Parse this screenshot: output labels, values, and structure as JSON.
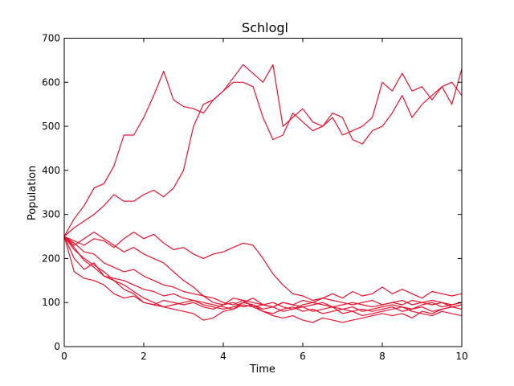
{
  "chart_data": {
    "type": "line",
    "title": "Schlogl",
    "xlabel": "Time",
    "ylabel": "Population",
    "xlim": [
      0,
      10
    ],
    "ylim": [
      0,
      700
    ],
    "xticks": [
      0,
      2,
      4,
      6,
      8,
      10
    ],
    "yticks": [
      0,
      100,
      200,
      300,
      400,
      500,
      600,
      700
    ],
    "grid": false,
    "legend": "none",
    "line_color": "#e8112d",
    "series": [
      {
        "x": [
          0,
          0.25,
          0.5,
          0.75,
          1.0,
          1.25,
          1.5,
          1.75,
          2.0,
          2.25,
          2.5,
          2.75,
          3.0,
          3.25,
          3.5,
          3.75,
          4.0,
          4.25,
          4.5,
          4.75,
          5.0,
          5.25,
          5.5,
          5.75,
          6.0,
          6.25,
          6.5,
          6.75,
          7.0,
          7.25,
          7.5,
          7.75,
          8.0,
          8.25,
          8.5,
          8.75,
          9.0,
          9.25,
          9.5,
          9.75,
          10.0
        ],
        "values": [
          250,
          290,
          320,
          360,
          370,
          410,
          480,
          480,
          520,
          570,
          625,
          560,
          545,
          540,
          530,
          560,
          580,
          610,
          640,
          620,
          600,
          640,
          500,
          520,
          540,
          510,
          500,
          530,
          520,
          470,
          460,
          490,
          500,
          530,
          570,
          520,
          550,
          570,
          590,
          550,
          630
        ]
      },
      {
        "x": [
          0,
          0.25,
          0.5,
          0.75,
          1.0,
          1.25,
          1.5,
          1.75,
          2.0,
          2.25,
          2.5,
          2.75,
          3.0,
          3.25,
          3.5,
          3.75,
          4.0,
          4.25,
          4.5,
          4.75,
          5.0,
          5.25,
          5.5,
          5.75,
          6.0,
          6.25,
          6.5,
          6.75,
          7.0,
          7.25,
          7.5,
          7.75,
          8.0,
          8.25,
          8.5,
          8.75,
          9.0,
          9.25,
          9.5,
          9.75,
          10.0
        ],
        "values": [
          250,
          270,
          285,
          300,
          320,
          345,
          330,
          330,
          345,
          355,
          340,
          360,
          400,
          500,
          550,
          560,
          580,
          600,
          600,
          590,
          520,
          470,
          480,
          530,
          510,
          490,
          500,
          520,
          480,
          490,
          500,
          520,
          600,
          580,
          620,
          580,
          590,
          560,
          590,
          600,
          570
        ]
      },
      {
        "x": [
          0,
          0.25,
          0.5,
          0.75,
          1.0,
          1.25,
          1.5,
          1.75,
          2.0,
          2.25,
          2.5,
          2.75,
          3.0,
          3.25,
          3.5,
          3.75,
          4.0,
          4.25,
          4.5,
          4.75,
          5.0,
          5.25,
          5.5,
          5.75,
          6.0,
          6.25,
          6.5,
          6.75,
          7.0,
          7.25,
          7.5,
          7.75,
          8.0,
          8.25,
          8.5,
          8.75,
          9.0,
          9.25,
          9.5,
          9.75,
          10.0
        ],
        "values": [
          250,
          240,
          230,
          245,
          240,
          225,
          245,
          260,
          245,
          255,
          235,
          220,
          225,
          210,
          200,
          210,
          215,
          225,
          235,
          230,
          200,
          165,
          140,
          120,
          115,
          105,
          110,
          120,
          110,
          125,
          115,
          120,
          135,
          120,
          130,
          120,
          110,
          125,
          120,
          115,
          120
        ]
      },
      {
        "x": [
          0,
          0.25,
          0.5,
          0.75,
          1.0,
          1.25,
          1.5,
          1.75,
          2.0,
          2.25,
          2.5,
          2.75,
          3.0,
          3.25,
          3.5,
          3.75,
          4.0,
          4.25,
          4.5,
          4.75,
          5.0,
          5.25,
          5.5,
          5.75,
          6.0,
          6.25,
          6.5,
          6.75,
          7.0,
          7.25,
          7.5,
          7.75,
          8.0,
          8.25,
          8.5,
          8.75,
          9.0,
          9.25,
          9.5,
          9.75,
          10.0
        ],
        "values": [
          250,
          230,
          245,
          260,
          245,
          230,
          215,
          225,
          210,
          200,
          190,
          170,
          150,
          135,
          115,
          110,
          100,
          95,
          105,
          90,
          95,
          100,
          90,
          85,
          95,
          100,
          95,
          90,
          85,
          90,
          80,
          85,
          90,
          95,
          90,
          85,
          95,
          100,
          90,
          95,
          100
        ]
      },
      {
        "x": [
          0,
          0.25,
          0.5,
          0.75,
          1.0,
          1.25,
          1.5,
          1.75,
          2.0,
          2.25,
          2.5,
          2.75,
          3.0,
          3.25,
          3.5,
          3.75,
          4.0,
          4.25,
          4.5,
          4.75,
          5.0,
          5.25,
          5.5,
          5.75,
          6.0,
          6.25,
          6.5,
          6.75,
          7.0,
          7.25,
          7.5,
          7.75,
          8.0,
          8.25,
          8.5,
          8.75,
          9.0,
          9.25,
          9.5,
          9.75,
          10.0
        ],
        "values": [
          250,
          220,
          200,
          185,
          170,
          150,
          140,
          125,
          110,
          100,
          90,
          85,
          80,
          75,
          60,
          65,
          80,
          85,
          95,
          90,
          80,
          70,
          65,
          70,
          60,
          55,
          65,
          60,
          55,
          60,
          65,
          70,
          75,
          70,
          75,
          65,
          80,
          75,
          85,
          90,
          95
        ]
      },
      {
        "x": [
          0,
          0.25,
          0.5,
          0.75,
          1.0,
          1.25,
          1.5,
          1.75,
          2.0,
          2.25,
          2.5,
          2.75,
          3.0,
          3.25,
          3.5,
          3.75,
          4.0,
          4.25,
          4.5,
          4.75,
          5.0,
          5.25,
          5.5,
          5.75,
          6.0,
          6.25,
          6.5,
          6.75,
          7.0,
          7.25,
          7.5,
          7.75,
          8.0,
          8.25,
          8.5,
          8.75,
          9.0,
          9.25,
          9.5,
          9.75,
          10.0
        ],
        "values": [
          250,
          200,
          175,
          190,
          160,
          150,
          130,
          120,
          100,
          95,
          90,
          95,
          100,
          105,
          95,
          90,
          85,
          90,
          100,
          95,
          85,
          90,
          80,
          85,
          90,
          80,
          85,
          90,
          75,
          80,
          85,
          80,
          85,
          90,
          80,
          85,
          90,
          80,
          85,
          90,
          85
        ]
      },
      {
        "x": [
          0,
          0.25,
          0.5,
          0.75,
          1.0,
          1.25,
          1.5,
          1.75,
          2.0,
          2.25,
          2.5,
          2.75,
          3.0,
          3.25,
          3.5,
          3.75,
          4.0,
          4.25,
          4.5,
          4.75,
          5.0,
          5.25,
          5.5,
          5.75,
          6.0,
          6.25,
          6.5,
          6.75,
          7.0,
          7.25,
          7.5,
          7.75,
          8.0,
          8.25,
          8.5,
          8.75,
          9.0,
          9.25,
          9.5,
          9.75,
          10.0
        ],
        "values": [
          250,
          170,
          155,
          150,
          140,
          120,
          110,
          115,
          100,
          95,
          105,
          100,
          95,
          100,
          90,
          85,
          95,
          100,
          90,
          95,
          80,
          75,
          85,
          90,
          80,
          85,
          75,
          80,
          85,
          80,
          70,
          75,
          80,
          85,
          90,
          80,
          75,
          70,
          80,
          75,
          70
        ]
      },
      {
        "x": [
          0,
          0.25,
          0.5,
          0.75,
          1.0,
          1.25,
          1.5,
          1.75,
          2.0,
          2.25,
          2.5,
          2.75,
          3.0,
          3.25,
          3.5,
          3.75,
          4.0,
          4.25,
          4.5,
          4.75,
          5.0,
          5.25,
          5.5,
          5.75,
          6.0,
          6.25,
          6.5,
          6.75,
          7.0,
          7.25,
          7.5,
          7.75,
          8.0,
          8.25,
          8.5,
          8.75,
          9.0,
          9.25,
          9.5,
          9.75,
          10.0
        ],
        "values": [
          250,
          235,
          215,
          210,
          190,
          180,
          170,
          175,
          160,
          150,
          140,
          135,
          125,
          120,
          115,
          100,
          95,
          110,
          105,
          100,
          95,
          90,
          100,
          95,
          105,
          100,
          110,
          105,
          100,
          95,
          100,
          105,
          95,
          100,
          105,
          95,
          100,
          105,
          100,
          95,
          100
        ]
      },
      {
        "x": [
          0,
          0.25,
          0.5,
          0.75,
          1.0,
          1.25,
          1.5,
          1.75,
          2.0,
          2.25,
          2.5,
          2.75,
          3.0,
          3.25,
          3.5,
          3.75,
          4.0,
          4.25,
          4.5,
          4.75,
          5.0,
          5.25,
          5.5,
          5.75,
          6.0,
          6.25,
          6.5,
          6.75,
          7.0,
          7.25,
          7.5,
          7.75,
          8.0,
          8.25,
          8.5,
          8.75,
          9.0,
          9.25,
          9.5,
          9.75,
          10.0
        ],
        "values": [
          250,
          225,
          195,
          180,
          160,
          155,
          150,
          140,
          130,
          125,
          115,
          120,
          110,
          105,
          100,
          95,
          90,
          85,
          100,
          110,
          95,
          90,
          100,
          95,
          90,
          95,
          100,
          90,
          95,
          100,
          95,
          90,
          95,
          100,
          95,
          105,
          100,
          95,
          100,
          90,
          95
        ]
      }
    ]
  }
}
